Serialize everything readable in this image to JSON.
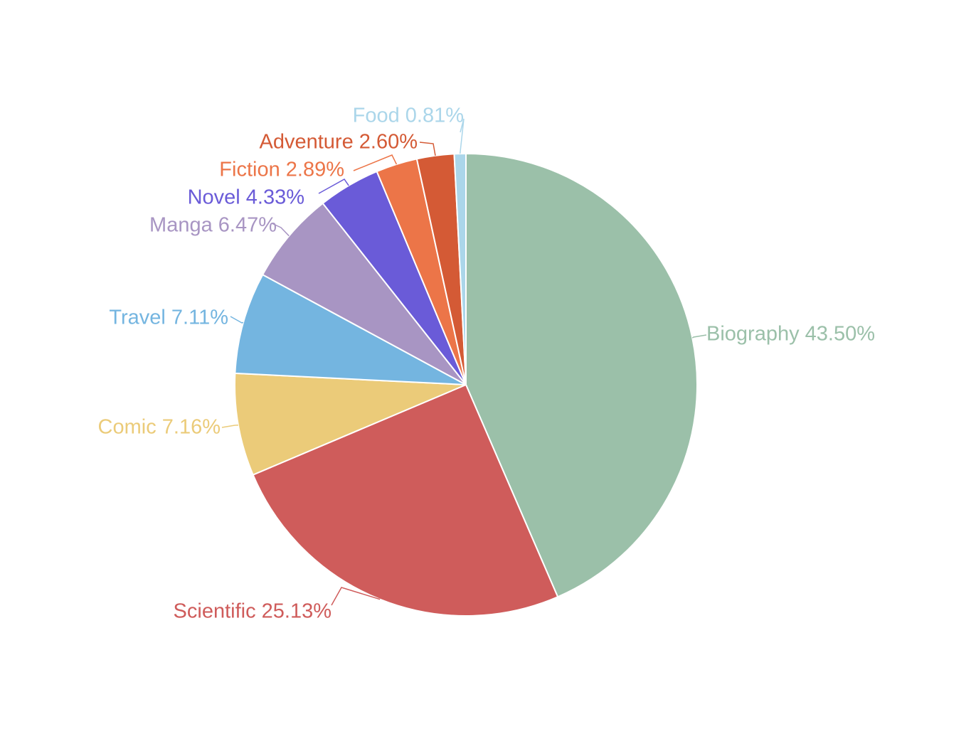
{
  "chart_data": {
    "type": "pie",
    "title": "",
    "slices": [
      {
        "name": "Biography",
        "value": 43.5,
        "label": "Biography 43.50%",
        "color": "#9bc0a9"
      },
      {
        "name": "Scientific",
        "value": 25.13,
        "label": "Scientific 25.13%",
        "color": "#cf5c5b"
      },
      {
        "name": "Comic",
        "value": 7.16,
        "label": "Comic 7.16%",
        "color": "#ebcb79"
      },
      {
        "name": "Travel",
        "value": 7.11,
        "label": "Travel 7.11%",
        "color": "#74b5e0"
      },
      {
        "name": "Manga",
        "value": 6.47,
        "label": "Manga 6.47%",
        "color": "#a895c3"
      },
      {
        "name": "Novel",
        "value": 4.33,
        "label": "Novel 4.33%",
        "color": "#6a5bd8"
      },
      {
        "name": "Fiction",
        "value": 2.89,
        "label": "Fiction 2.89%",
        "color": "#ec7548"
      },
      {
        "name": "Adventure",
        "value": 2.6,
        "label": "Adventure 2.60%",
        "color": "#d45a35"
      },
      {
        "name": "Food",
        "value": 0.81,
        "label": "Food 0.81%",
        "color": "#abd6ea"
      }
    ],
    "start_angle": "12 o'clock",
    "direction": "clockwise",
    "legend": "none"
  }
}
